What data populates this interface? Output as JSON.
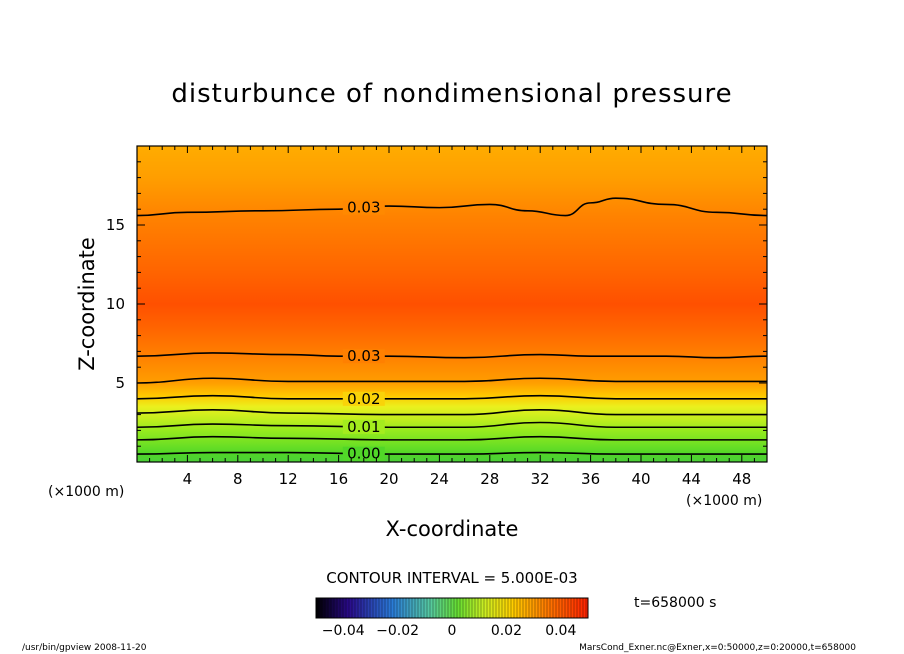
{
  "title": "disturbunce of nondimensional pressure",
  "chart_data": {
    "type": "heatmap",
    "title": "disturbunce of nondimensional pressure",
    "xlabel": "X-coordinate",
    "ylabel": "Z-coordinate",
    "x_unit_left": "(×1000 m)",
    "x_unit_right": "(×1000 m)",
    "xlim": [
      0,
      50
    ],
    "ylim": [
      0,
      20
    ],
    "xticks": [
      4,
      8,
      12,
      16,
      20,
      24,
      28,
      32,
      36,
      40,
      44,
      48
    ],
    "xtick_labels": [
      "4",
      "8",
      "12",
      "16",
      "20",
      "24",
      "28",
      "32",
      "36",
      "40",
      "44",
      "48"
    ],
    "yticks": [
      5,
      10,
      15
    ],
    "ytick_labels": [
      "5",
      "10",
      "15"
    ],
    "contour_interval_label": "CONTOUR INTERVAL = 5.000E-03",
    "contour_interval": 0.005,
    "fill_profile": [
      {
        "z": 0.0,
        "value": -0.002
      },
      {
        "z": 0.5,
        "value": 0.0
      },
      {
        "z": 1.2,
        "value": 0.005
      },
      {
        "z": 2.0,
        "value": 0.01
      },
      {
        "z": 2.7,
        "value": 0.015
      },
      {
        "z": 3.5,
        "value": 0.02
      },
      {
        "z": 4.2,
        "value": 0.025
      },
      {
        "z": 5.0,
        "value": 0.028
      },
      {
        "z": 6.6,
        "value": 0.03
      },
      {
        "z": 8.5,
        "value": 0.033
      },
      {
        "z": 10.0,
        "value": 0.035
      },
      {
        "z": 12.0,
        "value": 0.033
      },
      {
        "z": 15.5,
        "value": 0.03
      },
      {
        "z": 18.0,
        "value": 0.028
      },
      {
        "z": 20.0,
        "value": 0.027
      }
    ],
    "contours": [
      {
        "label": "0.03",
        "points": [
          [
            0,
            15.6
          ],
          [
            4,
            15.8
          ],
          [
            10,
            15.9
          ],
          [
            16,
            16.0
          ],
          [
            20,
            16.2
          ],
          [
            24,
            16.1
          ],
          [
            28,
            16.3
          ],
          [
            31,
            15.9
          ],
          [
            34,
            15.6
          ],
          [
            36,
            16.4
          ],
          [
            38,
            16.7
          ],
          [
            42,
            16.3
          ],
          [
            46,
            15.8
          ],
          [
            50,
            15.6
          ]
        ]
      },
      {
        "label": "0.03",
        "points": [
          [
            0,
            6.7
          ],
          [
            6,
            6.9
          ],
          [
            12,
            6.8
          ],
          [
            16,
            6.7
          ],
          [
            20,
            6.7
          ],
          [
            26,
            6.6
          ],
          [
            32,
            6.8
          ],
          [
            36,
            6.7
          ],
          [
            42,
            6.7
          ],
          [
            46,
            6.6
          ],
          [
            50,
            6.7
          ]
        ]
      },
      {
        "label": "",
        "points": [
          [
            0,
            5.0
          ],
          [
            6,
            5.3
          ],
          [
            12,
            5.1
          ],
          [
            20,
            5.1
          ],
          [
            26,
            5.1
          ],
          [
            32,
            5.3
          ],
          [
            38,
            5.1
          ],
          [
            44,
            5.1
          ],
          [
            50,
            5.1
          ]
        ]
      },
      {
        "label": "0.02",
        "points": [
          [
            0,
            4.0
          ],
          [
            6,
            4.2
          ],
          [
            12,
            4.0
          ],
          [
            20,
            4.0
          ],
          [
            26,
            4.0
          ],
          [
            32,
            4.2
          ],
          [
            38,
            4.0
          ],
          [
            44,
            4.0
          ],
          [
            50,
            4.0
          ]
        ]
      },
      {
        "label": "",
        "points": [
          [
            0,
            3.1
          ],
          [
            6,
            3.3
          ],
          [
            12,
            3.1
          ],
          [
            20,
            3.0
          ],
          [
            26,
            3.0
          ],
          [
            32,
            3.3
          ],
          [
            38,
            3.0
          ],
          [
            44,
            3.0
          ],
          [
            50,
            3.0
          ]
        ]
      },
      {
        "label": "0.01",
        "points": [
          [
            0,
            2.2
          ],
          [
            6,
            2.4
          ],
          [
            12,
            2.3
          ],
          [
            20,
            2.2
          ],
          [
            26,
            2.2
          ],
          [
            32,
            2.5
          ],
          [
            38,
            2.2
          ],
          [
            44,
            2.2
          ],
          [
            50,
            2.2
          ]
        ]
      },
      {
        "label": "",
        "points": [
          [
            0,
            1.4
          ],
          [
            6,
            1.6
          ],
          [
            12,
            1.5
          ],
          [
            20,
            1.4
          ],
          [
            26,
            1.4
          ],
          [
            32,
            1.6
          ],
          [
            38,
            1.4
          ],
          [
            44,
            1.4
          ],
          [
            50,
            1.4
          ]
        ]
      },
      {
        "label": "0.00",
        "points": [
          [
            0,
            0.5
          ],
          [
            6,
            0.6
          ],
          [
            12,
            0.6
          ],
          [
            20,
            0.5
          ],
          [
            26,
            0.5
          ],
          [
            32,
            0.6
          ],
          [
            38,
            0.5
          ],
          [
            44,
            0.5
          ],
          [
            50,
            0.5
          ]
        ]
      }
    ],
    "colorbar": {
      "min": -0.05,
      "max": 0.05,
      "tick_values": [
        -0.04,
        -0.02,
        0,
        0.02,
        0.04
      ],
      "tick_labels": [
        "−0.04",
        "−0.02",
        "0",
        "0.02",
        "0.04"
      ]
    }
  },
  "time_label": "t=658000 s",
  "footer": {
    "left": "/usr/bin/gpview   2008-11-20",
    "right": "MarsCond_Exner.nc@Exner,x=0:50000,z=0:20000,t=658000"
  }
}
